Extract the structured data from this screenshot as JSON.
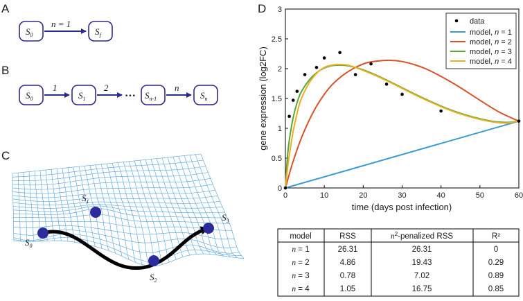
{
  "panels": {
    "A": {
      "letter": "A",
      "start_state": {
        "main": "S",
        "sub": "0"
      },
      "end_state": {
        "main": "S",
        "sub": "f"
      },
      "arrow_label": "n = 1"
    },
    "B": {
      "letter": "B",
      "states": [
        {
          "main": "S",
          "sub": "0"
        },
        {
          "main": "S",
          "sub": "1"
        },
        {
          "main": "S",
          "sub": "n-1"
        },
        {
          "main": "S",
          "sub": "n"
        }
      ],
      "arrow_labels": [
        "1",
        "2",
        "n"
      ],
      "ellipsis": "•••"
    },
    "C": {
      "letter": "C",
      "points": [
        {
          "main": "S",
          "sub": "0"
        },
        {
          "main": "S",
          "sub": "1"
        },
        {
          "main": "S",
          "sub": "2"
        },
        {
          "main": "S",
          "sub": "3"
        }
      ]
    },
    "D": {
      "letter": "D"
    }
  },
  "chart_data": {
    "type": "line",
    "title": "",
    "xlabel": "time (days post infection)",
    "ylabel": "gene expression (log2FC)",
    "xlim": [
      0,
      60
    ],
    "ylim": [
      0,
      3
    ],
    "xticks": [
      0,
      10,
      20,
      30,
      40,
      50,
      60
    ],
    "yticks": [
      0,
      0.5,
      1,
      1.5,
      2,
      2.5,
      3
    ],
    "grid": false,
    "legend_position": "top-right",
    "scatter": {
      "name": "data",
      "color": "#000000",
      "x": [
        0,
        1,
        2,
        3,
        5,
        8,
        10,
        14,
        18,
        22,
        26,
        30,
        40,
        60
      ],
      "y": [
        0,
        1.2,
        1.47,
        1.62,
        1.9,
        2.02,
        2.18,
        2.27,
        1.9,
        2.08,
        1.74,
        1.57,
        1.29,
        1.12
      ]
    },
    "series": [
      {
        "name": "model, n = 1",
        "legend_prefix": "model, ",
        "legend_var": "n",
        "legend_suffix": " = 1",
        "color": "#3d9ad1",
        "x": [
          0,
          60
        ],
        "y": [
          0,
          1.12
        ]
      },
      {
        "name": "model, n = 2",
        "legend_prefix": "model, ",
        "legend_var": "n",
        "legend_suffix": " = 2",
        "color": "#d65229",
        "x": [
          0,
          2,
          4,
          6,
          8,
          10,
          12,
          15,
          18,
          21,
          24,
          27,
          30,
          33,
          36,
          40,
          45,
          50,
          55,
          60
        ],
        "y": [
          0,
          0.45,
          0.82,
          1.12,
          1.37,
          1.57,
          1.73,
          1.9,
          2.02,
          2.1,
          2.13,
          2.14,
          2.12,
          2.07,
          2.0,
          1.87,
          1.68,
          1.47,
          1.27,
          1.12
        ]
      },
      {
        "name": "model, n = 3",
        "legend_prefix": "model, ",
        "legend_var": "n",
        "legend_suffix": " = 3",
        "color": "#5aa43a",
        "x": [
          0,
          0.5,
          1,
          2,
          3,
          4,
          6,
          8,
          10,
          12,
          14,
          16,
          18,
          20,
          23,
          26,
          30,
          34,
          38,
          42,
          46,
          50,
          54,
          57,
          60
        ],
        "y": [
          0,
          0.5,
          0.8,
          1.18,
          1.43,
          1.6,
          1.8,
          1.93,
          2.01,
          2.05,
          2.06,
          2.05,
          2.02,
          1.98,
          1.9,
          1.81,
          1.68,
          1.55,
          1.43,
          1.32,
          1.23,
          1.16,
          1.11,
          1.1,
          1.12
        ]
      },
      {
        "name": "model, n = 4",
        "legend_prefix": "model, ",
        "legend_var": "n",
        "legend_suffix": " = 4",
        "color": "#e8b020",
        "x": [
          0,
          0.5,
          1,
          2,
          3,
          4,
          6,
          8,
          10,
          12,
          14,
          16,
          18,
          20,
          23,
          26,
          30,
          34,
          38,
          42,
          46,
          50,
          54,
          57,
          60
        ],
        "y": [
          0,
          0.3,
          0.55,
          0.95,
          1.25,
          1.48,
          1.75,
          1.92,
          2.02,
          2.06,
          2.07,
          2.06,
          2.02,
          1.97,
          1.89,
          1.8,
          1.67,
          1.54,
          1.42,
          1.31,
          1.22,
          1.15,
          1.1,
          1.09,
          1.12
        ]
      }
    ],
    "legend_data_label": "data",
    "table": {
      "headers": [
        "model",
        "RSS",
        "-penalized RSS",
        "R²"
      ],
      "header_prefix_italic": "n",
      "header_prefix_sup": "2",
      "rows": [
        {
          "var": "n",
          "model": " = 1",
          "rss": "26.31",
          "pen": "26.31",
          "r2": "0"
        },
        {
          "var": "n",
          "model": " = 2",
          "rss": "4.86",
          "pen": "19.43",
          "r2": "0.29"
        },
        {
          "var": "n",
          "model": " = 3",
          "rss": "0.78",
          "pen": "7.02",
          "r2": "0.89"
        },
        {
          "var": "n",
          "model": " = 4",
          "rss": "1.05",
          "pen": "16.75",
          "r2": "0.85"
        }
      ]
    }
  }
}
